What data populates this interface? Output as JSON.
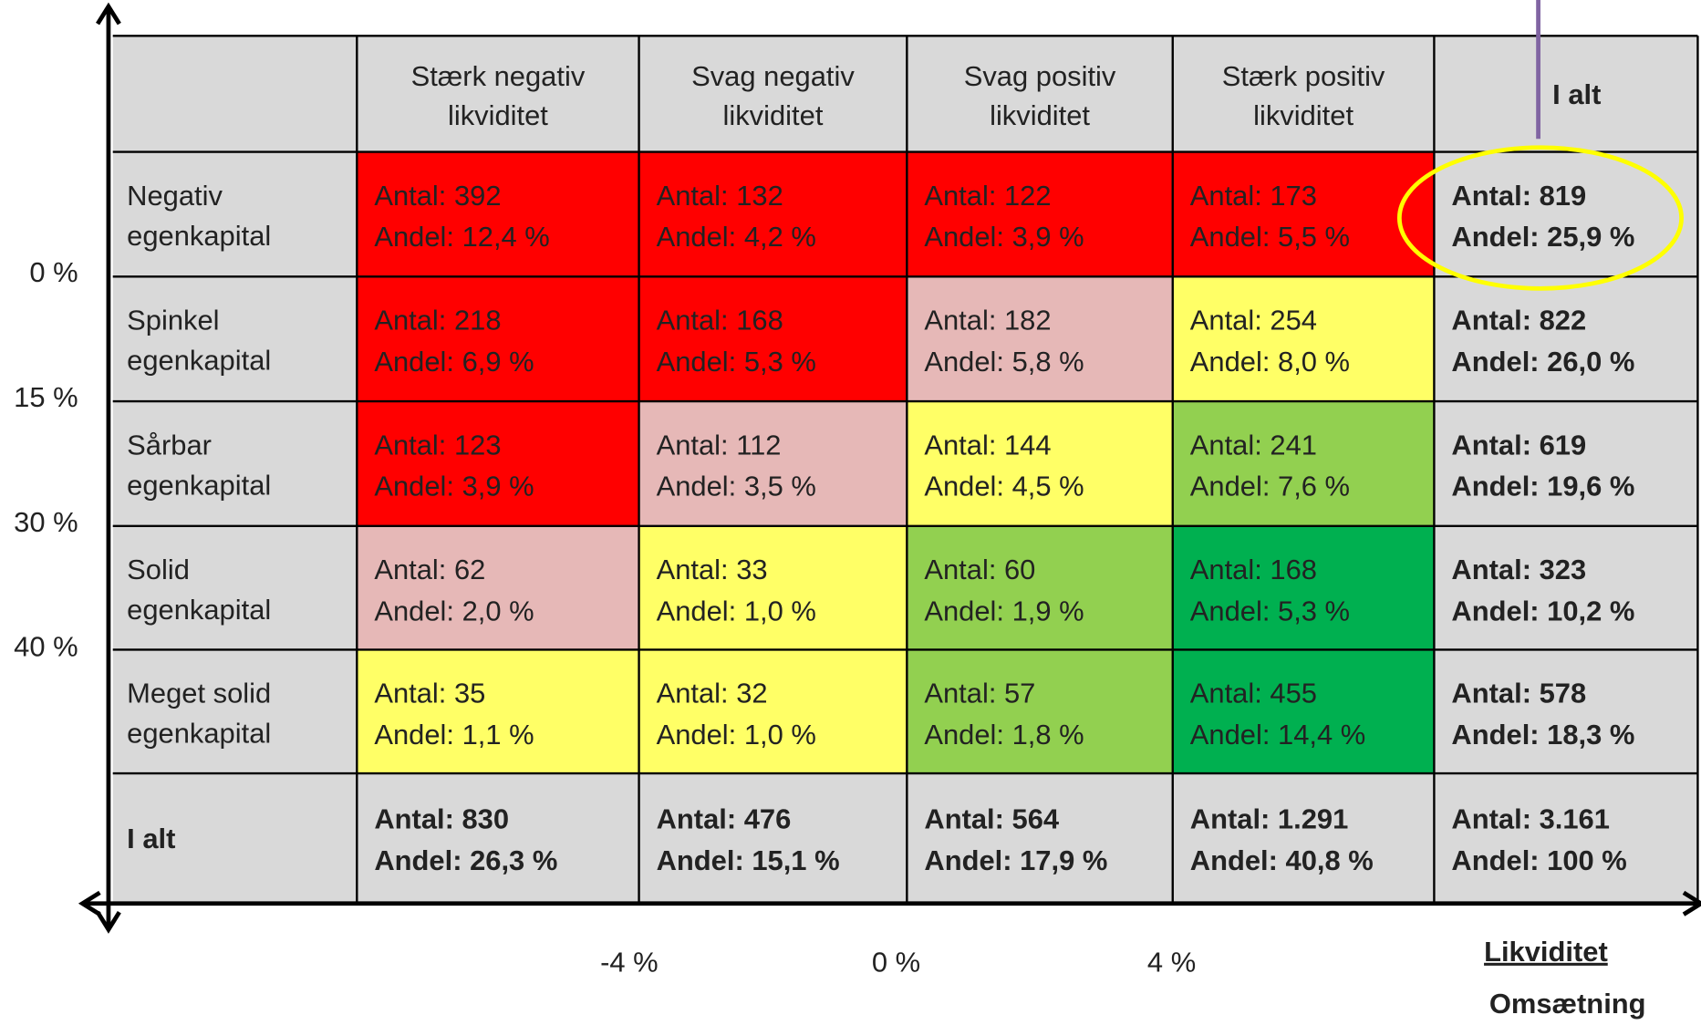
{
  "columns": [
    [
      "Stærk negativ",
      "likviditet"
    ],
    [
      "Svag negativ",
      "likviditet"
    ],
    [
      "Svag positiv",
      "likviditet"
    ],
    [
      "Stærk positiv",
      "likviditet"
    ],
    [
      "I alt"
    ]
  ],
  "rows": [
    {
      "label": [
        "Negativ",
        "egenkapital"
      ],
      "cells": [
        {
          "antal": "Antal: 392",
          "andel": "Andel: 12,4 %",
          "color": "#ff0000"
        },
        {
          "antal": "Antal: 132",
          "andel": "Andel: 4,2 %",
          "color": "#ff0000"
        },
        {
          "antal": "Antal: 122",
          "andel": "Andel: 3,9 %",
          "color": "#ff0000"
        },
        {
          "antal": "Antal: 173",
          "andel": "Andel: 5,5 %",
          "color": "#ff0000"
        },
        {
          "antal": "Antal: 819",
          "andel": "Andel: 25,9 %",
          "color": "#d9d9d9"
        }
      ]
    },
    {
      "label": [
        "Spinkel",
        "egenkapital"
      ],
      "cells": [
        {
          "antal": "Antal: 218",
          "andel": "Andel: 6,9 %",
          "color": "#ff0000"
        },
        {
          "antal": "Antal: 168",
          "andel": "Andel: 5,3 %",
          "color": "#ff0000"
        },
        {
          "antal": "Antal: 182",
          "andel": "Andel: 5,8 %",
          "color": "#e6b8b7"
        },
        {
          "antal": "Antal: 254",
          "andel": "Andel: 8,0 %",
          "color": "#ffff66"
        },
        {
          "antal": "Antal: 822",
          "andel": "Andel: 26,0 %",
          "color": "#d9d9d9"
        }
      ]
    },
    {
      "label": [
        "Sårbar",
        "egenkapital"
      ],
      "cells": [
        {
          "antal": "Antal: 123",
          "andel": "Andel: 3,9 %",
          "color": "#ff0000"
        },
        {
          "antal": "Antal: 112",
          "andel": "Andel: 3,5 %",
          "color": "#e6b8b7"
        },
        {
          "antal": "Antal: 144",
          "andel": "Andel: 4,5 %",
          "color": "#ffff66"
        },
        {
          "antal": "Antal: 241",
          "andel": "Andel: 7,6 %",
          "color": "#92d050"
        },
        {
          "antal": "Antal: 619",
          "andel": "Andel: 19,6 %",
          "color": "#d9d9d9"
        }
      ]
    },
    {
      "label": [
        "Solid",
        "egenkapital"
      ],
      "cells": [
        {
          "antal": "Antal: 62",
          "andel": "Andel: 2,0 %",
          "color": "#e6b8b7"
        },
        {
          "antal": "Antal: 33",
          "andel": "Andel: 1,0 %",
          "color": "#ffff66"
        },
        {
          "antal": "Antal: 60",
          "andel": "Andel: 1,9 %",
          "color": "#92d050"
        },
        {
          "antal": "Antal: 168",
          "andel": "Andel: 5,3 %",
          "color": "#00b050"
        },
        {
          "antal": "Antal: 323",
          "andel": "Andel: 10,2 %",
          "color": "#d9d9d9"
        }
      ]
    },
    {
      "label": [
        "Meget solid",
        "egenkapital"
      ],
      "cells": [
        {
          "antal": "Antal: 35",
          "andel": "Andel: 1,1 %",
          "color": "#ffff66"
        },
        {
          "antal": "Antal: 32",
          "andel": "Andel: 1,0 %",
          "color": "#ffff66"
        },
        {
          "antal": "Antal: 57",
          "andel": "Andel: 1,8 %",
          "color": "#92d050"
        },
        {
          "antal": "Antal: 455",
          "andel": "Andel: 14,4 %",
          "color": "#00b050"
        },
        {
          "antal": "Antal: 578",
          "andel": "Andel: 18,3 %",
          "color": "#d9d9d9"
        }
      ]
    },
    {
      "label": [
        "I alt"
      ],
      "cells": [
        {
          "antal": "Antal: 830",
          "andel": "Andel: 26,3 %",
          "color": "#d9d9d9"
        },
        {
          "antal": "Antal: 476",
          "andel": "Andel: 15,1 %",
          "color": "#d9d9d9"
        },
        {
          "antal": "Antal: 564",
          "andel": "Andel: 17,9 %",
          "color": "#d9d9d9"
        },
        {
          "antal": "Antal: 1.291",
          "andel": "Andel: 40,8 %",
          "color": "#d9d9d9"
        },
        {
          "antal": "Antal: 3.161",
          "andel": "Andel: 100 %",
          "color": "#d9d9d9"
        }
      ]
    }
  ],
  "y_axis_labels": [
    "0 %",
    "15 %",
    "30 %",
    "40 %"
  ],
  "x_axis_labels": [
    "-4 %",
    "0 %",
    "4 %"
  ],
  "x_axis_title": "Likviditet",
  "x_axis_subtitle": "Omsætning"
}
